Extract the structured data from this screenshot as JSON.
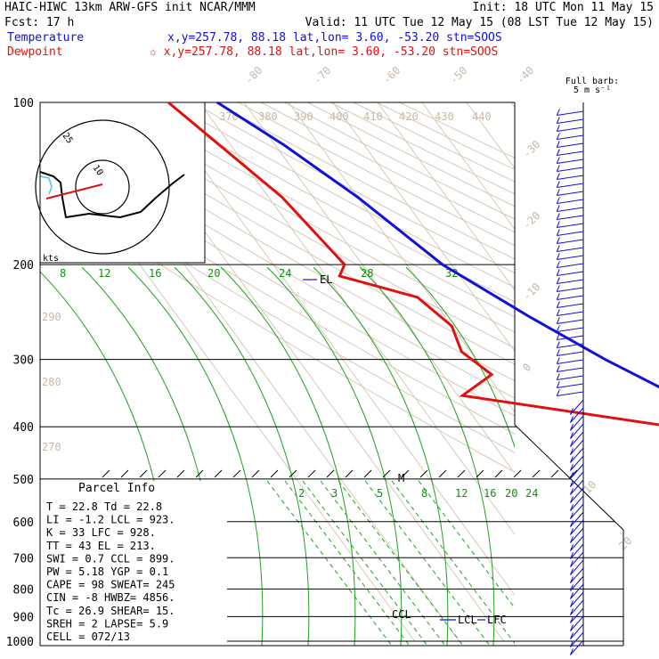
{
  "header": {
    "line1_left": "HAIC-HIWC 13km ARW-GFS init   NCAR/MMM",
    "line1_right": "Init: 18 UTC Mon 11 May 15",
    "line2_left": "Fcst:   17 h",
    "line2_right": "Valid: 11 UTC Tue 12 May 15 (08 LST Tue 12 May 15)",
    "temp_label": "Temperature",
    "temp_info": "x,y=257.78, 88.18    lat,lon=  3.60, -53.20  stn=SOOS",
    "dew_label": "Dewpoint",
    "dew_info": "✩ x,y=257.78, 88.18    lat,lon=  3.60, -53.20  stn=SOOS"
  },
  "barb_key": {
    "line1": "Full barb:",
    "line2": "5 m s⁻¹"
  },
  "hodograph": {
    "rings": [
      "25",
      "10"
    ],
    "units": "kts"
  },
  "annotations": {
    "el": "EL",
    "ccl": "CCL",
    "lcl": "LCL",
    "lfc": "LFC",
    "m": "M"
  },
  "parcel_info": {
    "title": "Parcel Info",
    "rows": [
      "T  =   22.8  Td =  22.8",
      "LI =   -1.2  LCL =  923.",
      "K  =     33  LFC =  928.",
      "TT =     43  EL  =  213.",
      "SWI =   0.7  CCL =  899.",
      "PW =   5.18  YGP =   0.1",
      "CAPE =   98  SWEAT=  245",
      "CIN  =   -8  HWBZ= 4856.",
      "Tc =   26.9  SHEAR=  15.",
      "SREH =    2  LAPSE=  5.9",
      "CELL = 072/13"
    ]
  },
  "chart_data": {
    "type": "line",
    "ylabel": "",
    "xlabel": "",
    "y_scale": "log",
    "pressure_levels": [
      100,
      200,
      300,
      400,
      500,
      600,
      700,
      800,
      900,
      1000
    ],
    "isotherm_labels": [
      "-80",
      "-70",
      "-60",
      "-50",
      "-40",
      "-30",
      "-20",
      "-10",
      "0",
      "10",
      "20",
      "30",
      "40"
    ],
    "theta_labels_top": [
      "370",
      "380",
      "390",
      "400",
      "410",
      "420",
      "430",
      "440"
    ],
    "theta_labels_left": [
      "290",
      "280",
      "270"
    ],
    "theta_e_labels": [
      "8",
      "12",
      "16",
      "20",
      "24",
      "28",
      "32"
    ],
    "mixing_ratio_labels": [
      "2",
      "3",
      "5",
      "8",
      "12",
      "16",
      "20",
      "24"
    ],
    "series": [
      {
        "name": "Temperature",
        "color": "#1010d8",
        "points": [
          [
            100,
            -76
          ],
          [
            120,
            -68
          ],
          [
            150,
            -60
          ],
          [
            200,
            -52
          ],
          [
            250,
            -41
          ],
          [
            300,
            -31
          ],
          [
            350,
            -21
          ],
          [
            400,
            -13
          ],
          [
            500,
            -5
          ],
          [
            600,
            4
          ],
          [
            700,
            11
          ],
          [
            800,
            16
          ],
          [
            900,
            21
          ],
          [
            950,
            22.8
          ]
        ]
      },
      {
        "name": "Dewpoint",
        "color": "#e01010",
        "points": [
          [
            100,
            -87
          ],
          [
            150,
            -77
          ],
          [
            200,
            -74
          ],
          [
            210,
            -77
          ],
          [
            230,
            -63
          ],
          [
            260,
            -60
          ],
          [
            290,
            -62
          ],
          [
            320,
            -59
          ],
          [
            350,
            -69
          ],
          [
            400,
            -27
          ],
          [
            450,
            -19
          ],
          [
            500,
            -12
          ],
          [
            600,
            -3
          ],
          [
            700,
            3
          ],
          [
            800,
            9
          ],
          [
            900,
            20
          ],
          [
            950,
            22.8
          ]
        ]
      }
    ]
  },
  "colors": {
    "temperature": "#1010d8",
    "dewpoint": "#e01010",
    "isobar": "#000000",
    "isotherm": "#c9b8a6",
    "theta_e": "#109010",
    "barbs": "#1010d8"
  }
}
